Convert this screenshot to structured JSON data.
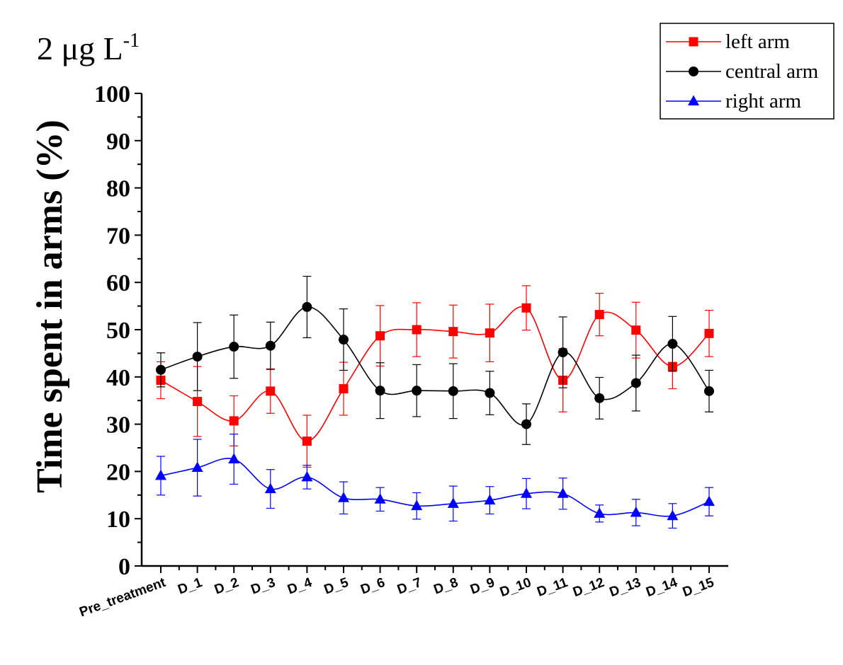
{
  "chart_data": {
    "type": "line",
    "title": "2 μg L",
    "title_superscript": "-1",
    "ylabel": "Time spent in arms (%)",
    "xlabel": "",
    "ylim": [
      0,
      100
    ],
    "ytick_major": [
      0,
      10,
      20,
      30,
      40,
      50,
      60,
      70,
      80,
      90,
      100
    ],
    "grid": false,
    "legend_position": "top-right",
    "categories": [
      "Pre_treatment",
      "D_1",
      "D_2",
      "D_3",
      "D_4",
      "D_5",
      "D_6",
      "D_7",
      "D_8",
      "D_9",
      "D_10",
      "D_11",
      "D_12",
      "D_13",
      "D_14",
      "D_15"
    ],
    "series": [
      {
        "name": "left arm",
        "color": "#ff0000",
        "marker": "square",
        "values": [
          39.3,
          34.8,
          30.7,
          37.0,
          26.4,
          37.5,
          48.7,
          50.0,
          49.6,
          49.3,
          54.6,
          39.3,
          53.2,
          49.9,
          42.2,
          49.2
        ],
        "errors": [
          3.9,
          7.4,
          5.3,
          4.7,
          5.5,
          5.6,
          6.4,
          5.7,
          5.6,
          6.1,
          4.7,
          6.7,
          4.5,
          5.9,
          4.7,
          4.9
        ]
      },
      {
        "name": "central arm",
        "color": "#000000",
        "marker": "circle",
        "values": [
          41.5,
          44.3,
          46.4,
          46.6,
          54.8,
          47.9,
          37.1,
          37.1,
          37.0,
          36.6,
          30.0,
          45.2,
          35.5,
          38.7,
          47.0,
          37.0
        ],
        "errors": [
          3.6,
          7.2,
          6.7,
          5.0,
          6.5,
          6.5,
          5.9,
          5.5,
          5.8,
          4.6,
          4.3,
          7.5,
          4.4,
          5.9,
          5.8,
          4.4
        ]
      },
      {
        "name": "right arm",
        "color": "#0000ff",
        "marker": "triangle",
        "values": [
          19.1,
          20.8,
          22.6,
          16.3,
          18.8,
          14.4,
          14.1,
          12.7,
          13.2,
          13.9,
          15.3,
          15.3,
          11.1,
          11.3,
          10.6,
          13.6
        ],
        "errors": [
          4.1,
          6.0,
          5.3,
          4.1,
          2.5,
          3.4,
          2.5,
          2.8,
          3.7,
          2.9,
          3.2,
          3.3,
          1.8,
          2.8,
          2.6,
          3.0
        ]
      }
    ]
  }
}
